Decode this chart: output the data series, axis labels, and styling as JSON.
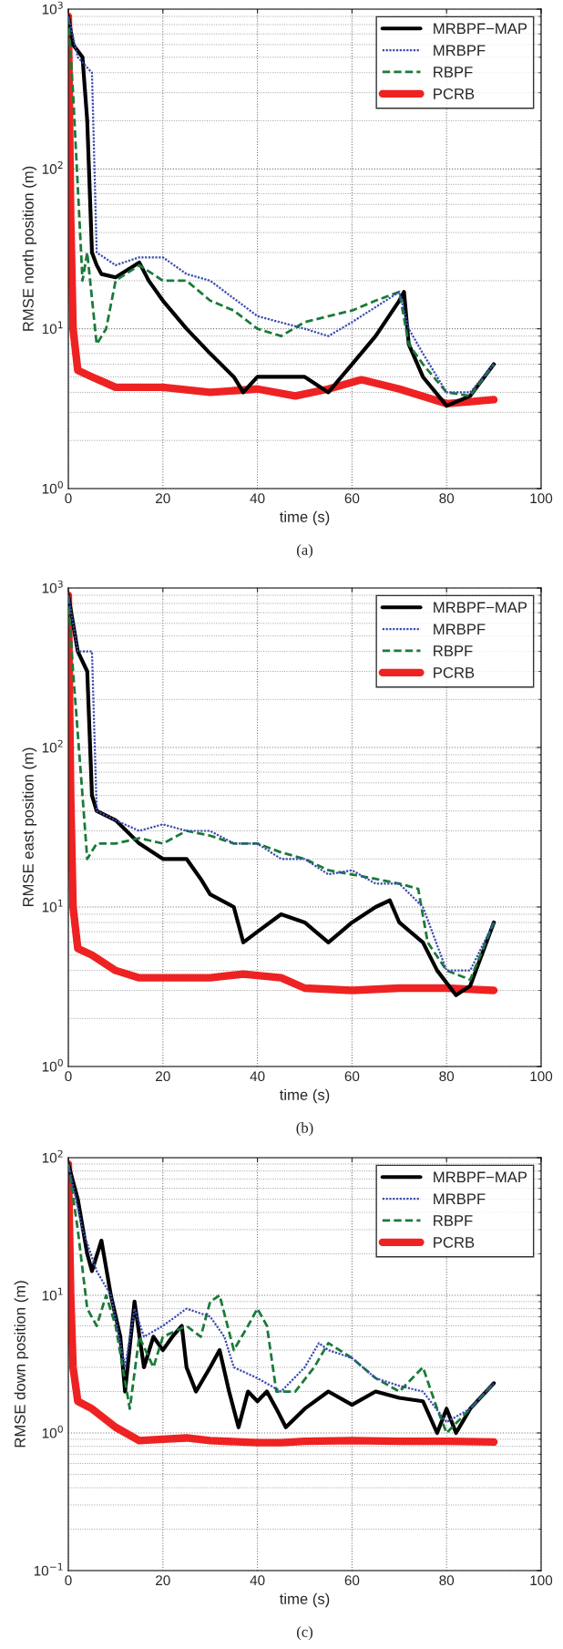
{
  "chart_data": [
    {
      "type": "line",
      "xlabel": "time (s)",
      "ylabel": "RMSE north position (m)",
      "log": "y",
      "xlim": [
        0,
        100
      ],
      "xticks": [
        0,
        20,
        40,
        60,
        80,
        100
      ],
      "ylim": [
        1,
        1000
      ],
      "yticks": [
        {
          "value": 1,
          "label": "10$^{0}$"
        },
        {
          "value": 10,
          "label": "10$^{1}$"
        },
        {
          "value": 100,
          "label": "10$^{2}$"
        },
        {
          "value": 1000,
          "label": "10$^{3}$"
        }
      ],
      "grid": true,
      "legend": "top right",
      "annotations": [
        "(a)"
      ],
      "series": [
        {
          "name": "MRBPF−MAP",
          "color": "#000000",
          "line_style": "solid",
          "x": [
            0,
            1,
            3,
            4,
            5,
            6,
            7,
            10,
            15,
            17,
            20,
            25,
            30,
            35,
            37,
            40,
            45,
            50,
            55,
            60,
            65,
            70,
            71,
            72,
            75,
            80,
            85,
            90
          ],
          "values": [
            900,
            600,
            500,
            200,
            30,
            25,
            22,
            21,
            26,
            20,
            15,
            10,
            7,
            5,
            4,
            5,
            5,
            5,
            4,
            6,
            9,
            15,
            17,
            8,
            5,
            3.3,
            3.8,
            6
          ]
        },
        {
          "name": "MRBPF",
          "color": "#3a4bb0",
          "line_style": "dotted",
          "x": [
            0,
            2,
            5,
            6,
            10,
            15,
            20,
            25,
            30,
            40,
            50,
            55,
            60,
            70,
            72,
            75,
            80,
            85,
            90
          ],
          "values": [
            900,
            500,
            400,
            30,
            25,
            28,
            28,
            22,
            20,
            12,
            10,
            9,
            11,
            17,
            10,
            7,
            4,
            4,
            6
          ]
        },
        {
          "name": "RBPF",
          "color": "#1a7a3a",
          "line_style": "dashed",
          "x": [
            0,
            1,
            3,
            4,
            6,
            8,
            10,
            15,
            20,
            25,
            30,
            35,
            40,
            45,
            50,
            55,
            60,
            65,
            70,
            72,
            75,
            80,
            85,
            90
          ],
          "values": [
            900,
            300,
            20,
            30,
            8,
            10,
            20,
            25,
            20,
            20,
            15,
            13,
            10,
            9,
            11,
            12,
            13,
            15,
            17,
            8,
            6,
            4,
            3.8,
            6
          ]
        },
        {
          "name": "PCRB",
          "color": "#ee2222",
          "line_style": "solid",
          "x": [
            0,
            0.5,
            1,
            2,
            5,
            10,
            20,
            30,
            40,
            48,
            55,
            62,
            70,
            80,
            90
          ],
          "values": [
            900,
            50,
            10,
            5.5,
            5,
            4.3,
            4.3,
            4,
            4.2,
            3.8,
            4.2,
            4.8,
            4.2,
            3.4,
            3.6
          ]
        }
      ]
    },
    {
      "type": "line",
      "xlabel": "time (s)",
      "ylabel": "RMSE east position (m)",
      "log": "y",
      "xlim": [
        0,
        100
      ],
      "xticks": [
        0,
        20,
        40,
        60,
        80,
        100
      ],
      "ylim": [
        1,
        1000
      ],
      "yticks": [
        {
          "value": 1,
          "label": "10$^{0}$"
        },
        {
          "value": 10,
          "label": "10$^{1}$"
        },
        {
          "value": 100,
          "label": "10$^{2}$"
        },
        {
          "value": 1000,
          "label": "10$^{3}$"
        }
      ],
      "grid": true,
      "legend": "top right",
      "annotations": [
        "(b)"
      ],
      "series": [
        {
          "name": "MRBPF−MAP",
          "color": "#000000",
          "line_style": "solid",
          "x": [
            0,
            2,
            4,
            5,
            6,
            10,
            15,
            20,
            25,
            28,
            30,
            35,
            37,
            40,
            45,
            50,
            55,
            60,
            65,
            68,
            70,
            75,
            78,
            82,
            85,
            90
          ],
          "values": [
            900,
            400,
            300,
            50,
            40,
            35,
            25,
            20,
            20,
            15,
            12,
            10,
            6,
            7,
            9,
            8,
            6,
            8,
            10,
            11,
            8,
            6,
            4,
            2.8,
            3.2,
            8
          ]
        },
        {
          "name": "MRBPF",
          "color": "#3a4bb0",
          "line_style": "dotted",
          "x": [
            0,
            2,
            5,
            6,
            10,
            15,
            20,
            25,
            30,
            35,
            40,
            45,
            50,
            55,
            60,
            65,
            70,
            75,
            80,
            85,
            90
          ],
          "values": [
            900,
            400,
            400,
            40,
            35,
            30,
            33,
            30,
            30,
            25,
            25,
            20,
            20,
            16,
            17,
            14,
            14,
            10,
            4,
            4,
            8
          ]
        },
        {
          "name": "RBPF",
          "color": "#1a7a3a",
          "line_style": "dashed",
          "x": [
            0,
            1,
            3,
            4,
            6,
            10,
            15,
            20,
            25,
            30,
            35,
            40,
            45,
            50,
            55,
            60,
            65,
            70,
            74,
            76,
            80,
            85,
            90
          ],
          "values": [
            900,
            300,
            50,
            20,
            25,
            25,
            27,
            25,
            30,
            28,
            25,
            25,
            22,
            20,
            17,
            16,
            15,
            14,
            13,
            6,
            4,
            3.5,
            8
          ]
        },
        {
          "name": "PCRB",
          "color": "#ee2222",
          "line_style": "solid",
          "x": [
            0,
            0.5,
            1,
            2,
            5,
            10,
            15,
            20,
            30,
            37,
            45,
            50,
            60,
            70,
            80,
            90
          ],
          "values": [
            900,
            50,
            10,
            5.5,
            5,
            4,
            3.6,
            3.6,
            3.6,
            3.8,
            3.6,
            3.1,
            3.0,
            3.1,
            3.1,
            3.0
          ]
        }
      ]
    },
    {
      "type": "line",
      "xlabel": "time (s)",
      "ylabel": "RMSE down position (m)",
      "log": "y",
      "xlim": [
        0,
        100
      ],
      "xticks": [
        0,
        20,
        40,
        60,
        80,
        100
      ],
      "ylim": [
        0.1,
        100
      ],
      "yticks": [
        {
          "value": 0.1,
          "label": "10$^{−1}$"
        },
        {
          "value": 1,
          "label": "10$^{0}$"
        },
        {
          "value": 10,
          "label": "10$^{1}$"
        },
        {
          "value": 100,
          "label": "10$^{2}$"
        }
      ],
      "grid": true,
      "legend": "top right",
      "annotations": [
        "(c)"
      ],
      "series": [
        {
          "name": "MRBPF−MAP",
          "color": "#000000",
          "line_style": "solid",
          "x": [
            0,
            2,
            4,
            5,
            7,
            9,
            11,
            12,
            14,
            16,
            18,
            20,
            22,
            24,
            25,
            27,
            30,
            32,
            34,
            36,
            38,
            40,
            42,
            44,
            46,
            50,
            55,
            60,
            65,
            70,
            75,
            78,
            80,
            82,
            85,
            90
          ],
          "values": [
            90,
            50,
            20,
            15,
            25,
            10,
            5,
            2,
            9,
            3,
            5,
            4,
            5,
            6,
            3,
            2,
            3,
            4,
            2,
            1.1,
            2,
            1.7,
            2,
            1.5,
            1.1,
            1.5,
            2,
            1.6,
            2,
            1.8,
            1.7,
            1.0,
            1.5,
            1.0,
            1.5,
            2.3
          ]
        },
        {
          "name": "MRBPF",
          "color": "#3a4bb0",
          "line_style": "dotted",
          "x": [
            0,
            3,
            6,
            9,
            12,
            14,
            16,
            20,
            25,
            30,
            33,
            35,
            40,
            45,
            50,
            53,
            55,
            60,
            65,
            70,
            75,
            80,
            85,
            90
          ],
          "values": [
            90,
            30,
            15,
            10,
            3,
            8,
            5,
            6,
            8,
            7,
            5,
            3,
            2.5,
            2,
            3,
            4.5,
            4,
            3.5,
            2.5,
            2.2,
            2,
            1.2,
            1.5,
            2.3
          ]
        },
        {
          "name": "RBPF",
          "color": "#1a7a3a",
          "line_style": "dashed",
          "x": [
            0,
            2,
            4,
            6,
            8,
            10,
            13,
            15,
            18,
            20,
            25,
            28,
            30,
            32,
            35,
            38,
            40,
            42,
            44,
            48,
            52,
            55,
            60,
            65,
            70,
            75,
            78,
            80,
            85,
            90
          ],
          "values": [
            90,
            30,
            8,
            6,
            10,
            6,
            1.5,
            5,
            3,
            5,
            6,
            5,
            9,
            10,
            4,
            6,
            8,
            6,
            2,
            2,
            3,
            4.5,
            3.5,
            2.5,
            2,
            3,
            1.5,
            1.0,
            1.5,
            2.3
          ]
        },
        {
          "name": "PCRB",
          "color": "#ee2222",
          "line_style": "solid",
          "x": [
            0,
            0.5,
            1,
            2,
            5,
            10,
            15,
            20,
            25,
            30,
            40,
            45,
            50,
            60,
            70,
            80,
            90
          ],
          "values": [
            90,
            10,
            3,
            1.7,
            1.5,
            1.1,
            0.88,
            0.9,
            0.92,
            0.88,
            0.85,
            0.85,
            0.87,
            0.88,
            0.87,
            0.87,
            0.86
          ]
        }
      ]
    }
  ]
}
